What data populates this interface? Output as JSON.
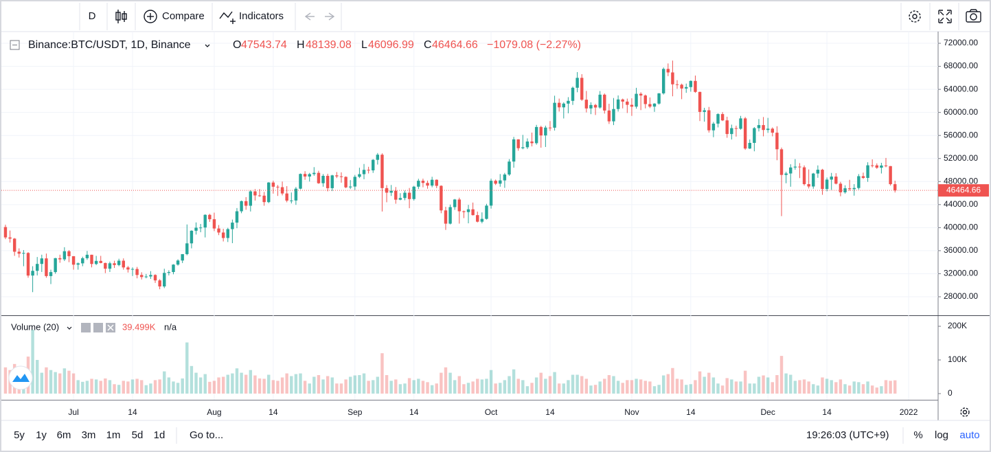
{
  "toolbar": {
    "interval": "D",
    "compare": "Compare",
    "indicators": "Indicators"
  },
  "chart_data": {
    "type": "candlestick",
    "symbol": "Binance:BTC/USDT, 1D, Binance",
    "ohlc_letters": [
      "O",
      "H",
      "L",
      "C"
    ],
    "change": "−1079.08 (−2.27%)",
    "up_color": "#26a69a",
    "down_color": "#ef5350",
    "open": [
      40100,
      38300,
      38090,
      35820,
      35480,
      35600,
      31680,
      32500,
      33700,
      34660,
      31590,
      32280,
      34700,
      34490,
      35900,
      35040,
      33570,
      33800,
      34690,
      35290,
      33690,
      34220,
      33860,
      32870,
      33810,
      33510,
      34260,
      33090,
      32730,
      32820,
      31780,
      31420,
      31520,
      31780,
      30840,
      29790,
      32140,
      32290,
      33580,
      34290,
      35400,
      37270,
      39460,
      39990,
      40020,
      42220,
      41460,
      39850,
      39150,
      38200,
      39740,
      40870,
      42840,
      44600,
      43800,
      46290,
      45590,
      45550,
      44430,
      47830,
      47100,
      47020,
      45930,
      44690,
      44710,
      46760,
      49320,
      48870,
      49290,
      49510,
      47710,
      48990,
      46850,
      49070,
      48900,
      48810,
      46990,
      47130,
      48820,
      49280,
      50030,
      49940,
      51770,
      52660,
      46860,
      46070,
      46400,
      44850,
      45140,
      46060,
      44960,
      47110,
      48140,
      47760,
      47300,
      48310,
      47260,
      42990,
      40690,
      43560,
      44880,
      42840,
      42700,
      43180,
      42170,
      41030,
      41520,
      43820,
      48140,
      47630,
      48200,
      49220,
      51470,
      55320,
      53790,
      53950,
      54950,
      54660,
      57470,
      56000,
      57370,
      57350,
      61670,
      60880,
      61530,
      62010,
      64280,
      66000,
      62210,
      60690,
      61290,
      60850,
      63080,
      60330,
      58450,
      60590,
      62250,
      61880,
      61320,
      61000,
      63230,
      62940,
      61450,
      61010,
      61530,
      63310,
      67550,
      66940,
      64880,
      64810,
      64150,
      64400,
      65470,
      63560,
      60090,
      60370,
      56890,
      58050,
      59710,
      58620,
      56250,
      57270,
      57160,
      58960,
      53730,
      54710,
      57270,
      57800,
      56950,
      57180,
      56480,
      53600,
      49150,
      49400,
      50440,
      50590,
      50470,
      47550,
      47140,
      49390,
      50050,
      46700,
      48340,
      48860,
      47630,
      46130,
      46830,
      46680,
      46880,
      48930,
      48630,
      50820,
      50810,
      50400,
      50780,
      50680,
      47543.74
    ],
    "high": [
      40500,
      39500,
      38200,
      36400,
      36100,
      35750,
      33300,
      34900,
      35300,
      35500,
      32700,
      34750,
      35300,
      36600,
      36100,
      35050,
      33950,
      34950,
      35950,
      35300,
      35100,
      35100,
      33920,
      34100,
      34250,
      34600,
      34660,
      33340,
      33100,
      33180,
      32250,
      31950,
      32450,
      31900,
      31060,
      32860,
      32600,
      33650,
      34500,
      35400,
      40550,
      39540,
      40900,
      40640,
      42320,
      42400,
      42600,
      40450,
      39800,
      39970,
      41400,
      43400,
      44700,
      45300,
      46500,
      46700,
      46700,
      46200,
      47900,
      48150,
      47400,
      48000,
      47200,
      46100,
      47050,
      49400,
      49800,
      49500,
      50500,
      49870,
      49300,
      49350,
      49170,
      49650,
      49600,
      48900,
      48250,
      49150,
      50400,
      51050,
      50560,
      51900,
      52950,
      52900,
      47380,
      47400,
      47050,
      45980,
      46450,
      46880,
      47250,
      48480,
      48500,
      48160,
      48830,
      48370,
      47340,
      43620,
      44000,
      44980,
      45200,
      42970,
      43950,
      44350,
      42780,
      42650,
      44130,
      48500,
      48350,
      49300,
      49500,
      51890,
      55750,
      55350,
      56100,
      55490,
      56500,
      57840,
      57680,
      57700,
      58500,
      62900,
      62400,
      61750,
      62650,
      64490,
      67000,
      66640,
      63730,
      61750,
      61490,
      63710,
      63290,
      61500,
      62500,
      62950,
      62400,
      62400,
      62450,
      64270,
      63500,
      63100,
      62600,
      61600,
      63350,
      67800,
      68500,
      69000,
      65600,
      65000,
      65000,
      65550,
      66400,
      63600,
      60800,
      60950,
      58350,
      59850,
      60050,
      59250,
      57880,
      57700,
      59400,
      59200,
      55300,
      57450,
      58850,
      59200,
      59050,
      57400,
      57600,
      53900,
      49700,
      51000,
      51900,
      51200,
      50800,
      50100,
      49500,
      50800,
      50200,
      48700,
      49500,
      49450,
      47950,
      47350,
      48300,
      47550,
      49300,
      49550,
      51350,
      51850,
      51150,
      51250,
      52100,
      50700,
      48139.08
    ],
    "low": [
      38000,
      37400,
      35100,
      34800,
      33300,
      31300,
      28800,
      31700,
      32300,
      31300,
      30200,
      32000,
      33900,
      34200,
      34000,
      32700,
      32700,
      33300,
      34400,
      33100,
      33500,
      33800,
      32100,
      32300,
      33000,
      33300,
      32700,
      32200,
      31600,
      31200,
      31000,
      31200,
      31100,
      30400,
      29300,
      29500,
      31700,
      31900,
      33400,
      33850,
      35200,
      36400,
      38800,
      39200,
      38300,
      41000,
      39400,
      38700,
      37600,
      37500,
      37300,
      39900,
      42500,
      43100,
      42800,
      44700,
      45350,
      43800,
      44250,
      45900,
      45500,
      45600,
      44400,
      44200,
      43950,
      46650,
      48300,
      48000,
      49000,
      47600,
      47100,
      46300,
      46350,
      48600,
      47800,
      46850,
      46700,
      46520,
      48600,
      48400,
      49400,
      49500,
      50950,
      42800,
      44400,
      45500,
      44150,
      44750,
      44750,
      43370,
      44700,
      46700,
      47000,
      46750,
      47000,
      46850,
      42500,
      39600,
      40560,
      43080,
      40700,
      41650,
      40750,
      42100,
      40900,
      40750,
      41400,
      43300,
      47400,
      47100,
      46900,
      49000,
      50400,
      53350,
      53600,
      53650,
      54100,
      54400,
      53880,
      54000,
      56800,
      56850,
      60150,
      58950,
      59850,
      61300,
      63500,
      62000,
      60000,
      59700,
      59550,
      60650,
      59800,
      58000,
      57800,
      60150,
      60700,
      59900,
      59400,
      60650,
      60400,
      60700,
      60750,
      60100,
      61350,
      63100,
      66300,
      62800,
      64100,
      62300,
      63400,
      63600,
      63400,
      58500,
      58400,
      56500,
      55700,
      57400,
      58500,
      55600,
      55300,
      55800,
      57000,
      53500,
      53650,
      53250,
      56700,
      55850,
      56450,
      55850,
      51700,
      42000,
      47700,
      47100,
      50050,
      48600,
      47300,
      46800,
      46750,
      48650,
      45700,
      46300,
      46550,
      47500,
      45450,
      45900,
      46400,
      45550,
      46600,
      48450,
      47950,
      50450,
      50200,
      49400,
      50480,
      47300,
      46096.99
    ],
    "close": [
      38300,
      38090,
      35820,
      35480,
      35600,
      31680,
      32500,
      33700,
      34660,
      31590,
      32280,
      34700,
      34490,
      35900,
      35040,
      33570,
      33800,
      34690,
      35290,
      33690,
      34220,
      33860,
      32870,
      33810,
      33510,
      34260,
      33090,
      32730,
      32820,
      31780,
      31420,
      31520,
      31780,
      30840,
      29790,
      32140,
      32290,
      33580,
      34290,
      35400,
      37270,
      39460,
      39990,
      40020,
      42220,
      41460,
      39850,
      39150,
      38200,
      39740,
      40870,
      42840,
      44600,
      43800,
      46290,
      45590,
      45550,
      44430,
      47830,
      47100,
      47020,
      45930,
      44690,
      44710,
      46760,
      49320,
      48870,
      49290,
      49510,
      47710,
      48990,
      46850,
      49070,
      48900,
      48810,
      46990,
      47130,
      48820,
      49280,
      50030,
      49940,
      51770,
      52660,
      46860,
      46070,
      46400,
      44850,
      45140,
      46060,
      44960,
      47110,
      48140,
      47760,
      47300,
      48310,
      47260,
      42990,
      40690,
      43560,
      44880,
      42840,
      42700,
      43180,
      42170,
      41030,
      41520,
      43820,
      48140,
      47630,
      48200,
      49220,
      51470,
      55320,
      53790,
      53950,
      54950,
      54660,
      57470,
      56000,
      57370,
      57350,
      61670,
      60880,
      61530,
      62010,
      64280,
      66000,
      62210,
      60690,
      61290,
      60850,
      63080,
      60330,
      58450,
      60590,
      62250,
      61880,
      61320,
      61000,
      63230,
      62940,
      61450,
      61010,
      61530,
      63310,
      67550,
      66940,
      64880,
      64810,
      64150,
      64400,
      65470,
      63560,
      60090,
      60370,
      56890,
      58050,
      59710,
      58620,
      56250,
      57270,
      57160,
      58960,
      53730,
      54710,
      57270,
      57800,
      56950,
      57180,
      56480,
      53600,
      49150,
      49400,
      50440,
      50590,
      50470,
      47550,
      47140,
      49390,
      50050,
      46700,
      48340,
      48860,
      47630,
      46130,
      46830,
      46680,
      46880,
      48930,
      48630,
      50820,
      50810,
      50400,
      50780,
      50680,
      47543.74,
      46464.66
    ],
    "xlim": [
      -0.9,
      205.5
    ],
    "xticks": [
      {
        "value": 15,
        "label": "Jul"
      },
      {
        "value": 28,
        "label": "14"
      },
      {
        "value": 46,
        "label": "Aug"
      },
      {
        "value": 59,
        "label": "14"
      },
      {
        "value": 77,
        "label": "Sep"
      },
      {
        "value": 90,
        "label": "14"
      },
      {
        "value": 107,
        "label": "Oct"
      },
      {
        "value": 120,
        "label": "14"
      },
      {
        "value": 138,
        "label": "Nov"
      },
      {
        "value": 151,
        "label": "14"
      },
      {
        "value": 168,
        "label": "Dec"
      },
      {
        "value": 181,
        "label": "14"
      },
      {
        "value": 199,
        "label": "2022"
      }
    ],
    "ylim": [
      24780,
      74030
    ],
    "yticks": [
      {
        "value": 28000,
        "label": "28000.00"
      },
      {
        "value": 32000,
        "label": "32000.00"
      },
      {
        "value": 36000,
        "label": "36000.00"
      },
      {
        "value": 40000,
        "label": "40000.00"
      },
      {
        "value": 44000,
        "label": "44000.00"
      },
      {
        "value": 48000,
        "label": "48000.00"
      },
      {
        "value": 52000,
        "label": "52000.00"
      },
      {
        "value": 56000,
        "label": "56000.00"
      },
      {
        "value": 60000,
        "label": "60000.00"
      },
      {
        "value": 64000,
        "label": "64000.00"
      },
      {
        "value": 68000,
        "label": "68000.00"
      },
      {
        "value": 72000,
        "label": "72000.00"
      }
    ],
    "grid": true,
    "volume": {
      "name": "Volume (20)",
      "last_label": "39.499K",
      "extra": "n/a",
      "ylim": [
        -18400,
        230600
      ],
      "yticks": [
        0,
        {
          "value": 100000,
          "label": "100K"
        },
        {
          "value": 200000,
          "label": "200K"
        }
      ],
      "values": [
        78000,
        70000,
        88000,
        58000,
        72000,
        110000,
        190000,
        100000,
        62000,
        78000,
        70000,
        64000,
        60000,
        75000,
        68000,
        60000,
        40000,
        35000,
        38000,
        44000,
        42000,
        38000,
        45000,
        40000,
        28000,
        26000,
        38000,
        36000,
        42000,
        44000,
        40000,
        25000,
        30000,
        40000,
        42000,
        66000,
        48000,
        36000,
        32000,
        45000,
        152000,
        82000,
        62000,
        48000,
        58000,
        35000,
        38000,
        48000,
        50000,
        56000,
        60000,
        75000,
        62000,
        56000,
        70000,
        54000,
        45000,
        44000,
        56000,
        40000,
        38000,
        48000,
        60000,
        52000,
        58000,
        60000,
        38000,
        30000,
        50000,
        55000,
        42000,
        52000,
        48000,
        30000,
        30000,
        42000,
        50000,
        54000,
        55000,
        60000,
        38000,
        40000,
        50000,
        120000,
        55000,
        38000,
        42000,
        28000,
        30000,
        46000,
        40000,
        44000,
        38000,
        34000,
        25000,
        30000,
        62000,
        78000,
        62000,
        40000,
        52000,
        28000,
        32000,
        36000,
        44000,
        42000,
        44000,
        70000,
        30000,
        32000,
        40000,
        52000,
        72000,
        44000,
        40000,
        22000,
        32000,
        48000,
        62000,
        44000,
        52000,
        64000,
        30000,
        30000,
        40000,
        56000,
        56000,
        52000,
        44000,
        24000,
        26000,
        36000,
        44000,
        55000,
        52000,
        38000,
        32000,
        40000,
        40000,
        44000,
        42000,
        38000,
        36000,
        22000,
        26000,
        54000,
        58000,
        76000,
        44000,
        42000,
        26000,
        28000,
        40000,
        66000,
        50000,
        62000,
        48000,
        30000,
        24000,
        46000,
        42000,
        36000,
        36000,
        68000,
        30000,
        30000,
        50000,
        54000,
        48000,
        34000,
        55000,
        112000,
        60000,
        56000,
        38000,
        40000,
        42000,
        36000,
        28000,
        24000,
        48000,
        44000,
        40000,
        34000,
        42000,
        28000,
        24000,
        36000,
        34000,
        28000,
        36000,
        24000,
        18000,
        22000,
        40000,
        38000,
        39499
      ]
    }
  },
  "bottom_bar": {
    "ranges": [
      "5y",
      "1y",
      "6m",
      "3m",
      "1m",
      "5d",
      "1d"
    ],
    "goto": "Go to...",
    "clock": "19:26:03 (UTC+9)",
    "percent": "%",
    "log": "log",
    "auto": "auto"
  }
}
